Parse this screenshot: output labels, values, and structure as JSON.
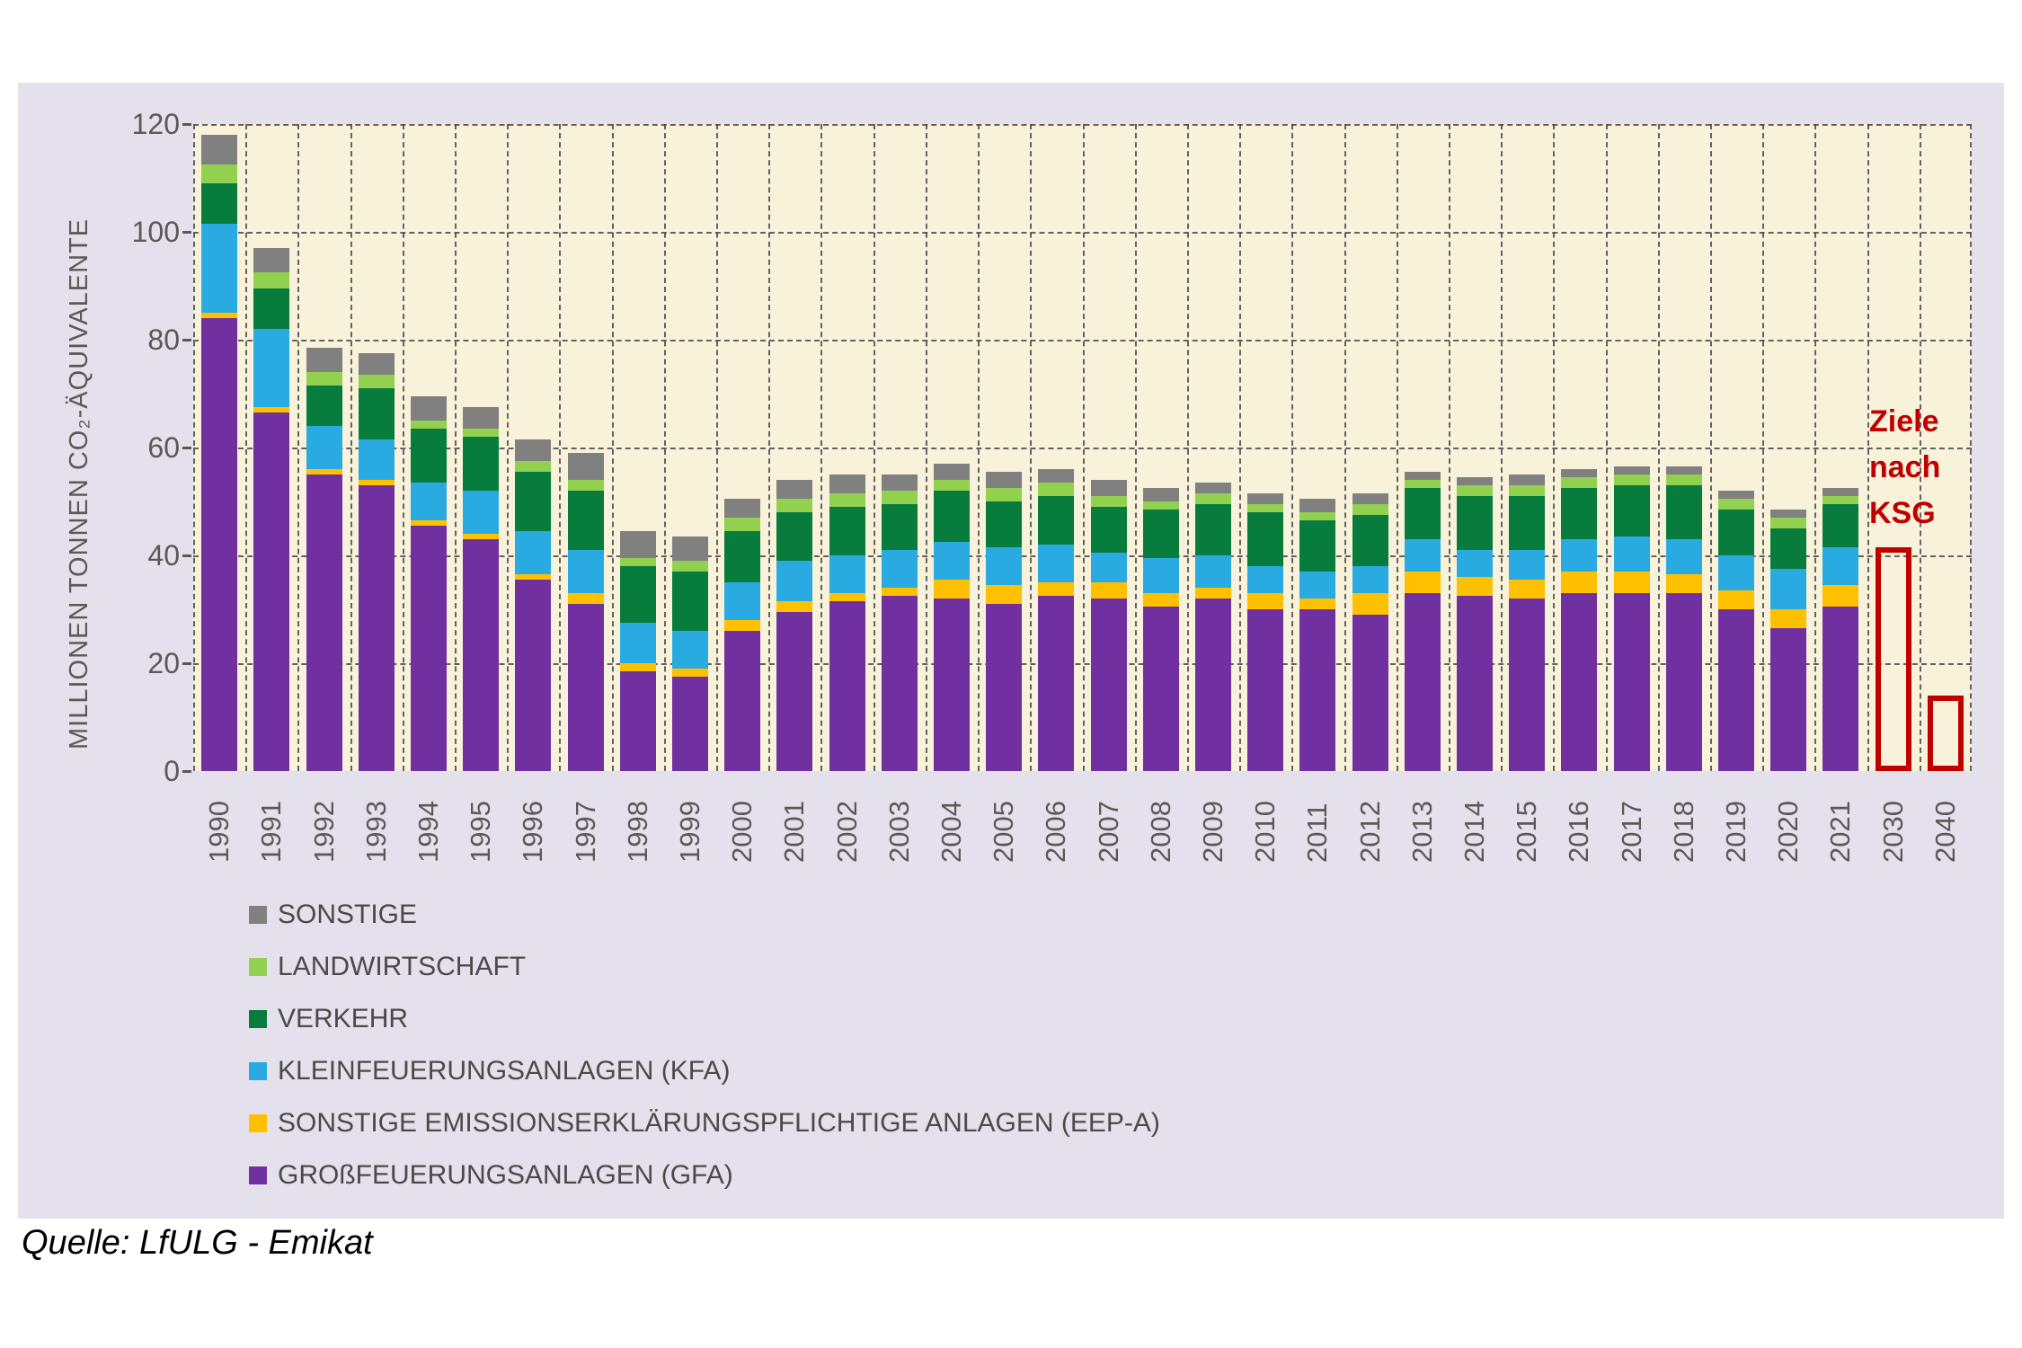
{
  "y_axis": {
    "title": "MILLIONEN TONNEN CO₂-ÄQUIVALENTE",
    "ticks": [
      120,
      100,
      80,
      60,
      40,
      20,
      0
    ]
  },
  "chart_data": {
    "type": "bar",
    "stacked": true,
    "title": "",
    "ylabel": "MILLIONEN TONNEN CO₂-ÄQUIVALENTE",
    "ylim": [
      0,
      120
    ],
    "grid": "dashed",
    "legend_position": "bottom-left",
    "categories": [
      "1990",
      "1991",
      "1992",
      "1993",
      "1994",
      "1995",
      "1996",
      "1997",
      "1998",
      "1999",
      "2000",
      "2001",
      "2002",
      "2003",
      "2004",
      "2005",
      "2006",
      "2007",
      "2008",
      "2009",
      "2010",
      "2011",
      "2012",
      "2013",
      "2014",
      "2015",
      "2016",
      "2017",
      "2018",
      "2019",
      "2020",
      "2021"
    ],
    "series": [
      {
        "name": "GROßFEUERUNGSANLAGEN (GFA)",
        "color": "#7030A0",
        "values": [
          84,
          66.5,
          55,
          53,
          45.5,
          43,
          35.5,
          31,
          18.5,
          17.5,
          26,
          29.5,
          31.5,
          32.5,
          32,
          31,
          32.5,
          32,
          30.5,
          32,
          30,
          30,
          29,
          33,
          32.5,
          32,
          33,
          33,
          33,
          30,
          26.5,
          30.5
        ]
      },
      {
        "name": "SONSTIGE EMISSIONSERKLÄRUNGSPFLICHTIGE ANLAGEN (EEP-A)",
        "color": "#FFC000",
        "values": [
          1,
          1,
          1,
          1,
          1,
          1,
          1,
          2,
          1.5,
          1.5,
          2,
          2,
          1.5,
          1.5,
          3.5,
          3.5,
          2.5,
          3,
          2.5,
          2,
          3,
          2,
          4,
          4,
          3.5,
          3.5,
          4,
          4,
          3.5,
          3.5,
          3.5,
          4
        ]
      },
      {
        "name": "KLEINFEUERUNGSANLAGEN (KFA)",
        "color": "#29ABE2",
        "values": [
          16.5,
          14.5,
          8,
          7.5,
          7,
          8,
          8,
          8,
          7.5,
          7,
          7,
          7.5,
          7,
          7,
          7,
          7,
          7,
          5.5,
          6.5,
          6,
          5,
          5,
          5,
          6,
          5,
          5.5,
          6,
          6.5,
          6.5,
          6.5,
          7.5,
          7
        ]
      },
      {
        "name": "VERKEHR",
        "color": "#077C3D",
        "values": [
          7.5,
          7.5,
          7.5,
          9.5,
          10,
          10,
          11,
          11,
          10.5,
          11,
          9.5,
          9,
          9,
          8.5,
          9.5,
          8.5,
          9,
          8.5,
          9,
          9.5,
          10,
          9.5,
          9.5,
          9.5,
          10,
          10,
          9.5,
          9.5,
          10,
          8.5,
          7.5,
          8
        ]
      },
      {
        "name": "LANDWIRTSCHAFT",
        "color": "#92D050",
        "values": [
          3.5,
          3,
          2.5,
          2.5,
          1.5,
          1.5,
          2,
          2,
          1.5,
          2,
          2.5,
          2.5,
          2.5,
          2.5,
          2,
          2.5,
          2.5,
          2,
          1.5,
          2,
          1.5,
          1.5,
          2,
          1.5,
          2,
          2,
          2,
          2,
          2,
          2,
          2,
          1.5
        ]
      },
      {
        "name": "SONSTIGE",
        "color": "#808080",
        "values": [
          5.5,
          4.5,
          4.5,
          4,
          4.5,
          4,
          4,
          5,
          5,
          4.5,
          3.5,
          3.5,
          3.5,
          3,
          3,
          3,
          2.5,
          3,
          2.5,
          2,
          2,
          2.5,
          2,
          1.5,
          1.5,
          2,
          1.5,
          1.5,
          1.5,
          1.5,
          1.5,
          1.5
        ]
      }
    ],
    "targets": [
      {
        "year": "2030",
        "value": 41.5
      },
      {
        "year": "2040",
        "value": 14
      }
    ],
    "annotation": {
      "text": "Ziele nach KSG",
      "color": "#C00000"
    }
  },
  "source": "Quelle: LfULG - Emikat",
  "colors": {
    "panel_background": "#E5E1EC",
    "plot_background": "#F9F2DA",
    "gridline": "#4a4a4a",
    "axis_text": "#595959",
    "legend_text": "#4a4a4a",
    "target_red": "#C00000",
    "source_text": "#000000"
  }
}
